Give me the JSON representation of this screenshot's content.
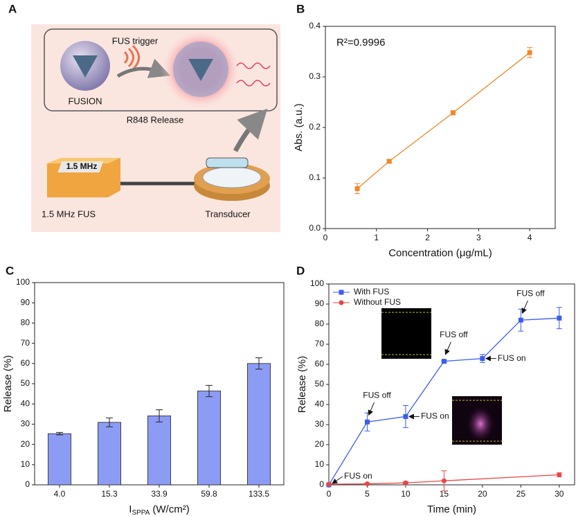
{
  "panel_labels": [
    "A",
    "B",
    "C",
    "D"
  ],
  "diagram": {
    "fus_trigger": "FUS trigger",
    "fusion": "FUSION",
    "release": "R848 Release",
    "device_label": "1.5 MHz",
    "fus": "1.5 MHz FUS",
    "transducer": "Transducer"
  },
  "chart_data": [
    {
      "type": "line",
      "annotation": "R²=0.9996",
      "x_label": "Concentration (μg/mL)",
      "y_label": "Abs. (a.u.)",
      "x": [
        0.625,
        1.25,
        2.5,
        4
      ],
      "series": [
        {
          "color": "#f0872a",
          "marker": "square",
          "values": [
            0.079,
            0.133,
            0.229,
            0.348
          ],
          "errors": [
            0.01,
            0.003,
            0.004,
            0.01
          ]
        }
      ],
      "xlim": [
        0,
        4.5
      ],
      "xticks": [
        0,
        1,
        2,
        3,
        4
      ],
      "ylim": [
        0,
        0.4
      ],
      "yticks": [
        {
          "value": 0,
          "label": "0.0"
        },
        0.1,
        0.2,
        0.3,
        0.4
      ]
    },
    {
      "type": "bar",
      "y_label": "Release (%)",
      "x_label": "I",
      "x_label_sub": "SPPA",
      "x_label_unit": "(W/cm²)",
      "categories": [
        "4.0",
        "15.3",
        "33.9",
        "59.8",
        "133.5"
      ],
      "values": [
        25.3,
        30.9,
        34.1,
        46.4,
        60.0
      ],
      "errors": [
        0.6,
        2.2,
        3.0,
        2.8,
        2.8
      ],
      "color": "#8c9cf5",
      "ylim": [
        0,
        100
      ],
      "yticks": [
        0,
        10,
        20,
        30,
        40,
        50,
        60,
        70,
        80,
        90,
        100
      ]
    },
    {
      "type": "line",
      "x_label": "Time (min)",
      "y_label": "Release (%)",
      "legend": "top-left",
      "series": [
        {
          "name": "With FUS",
          "color": "#3b5cf0",
          "marker": "square",
          "x": [
            0,
            5,
            10,
            15,
            20,
            25,
            30
          ],
          "values": [
            0,
            31.3,
            34.0,
            61.5,
            62.9,
            82.0,
            83.0
          ],
          "errors": [
            0,
            4.5,
            5.5,
            0.5,
            2.0,
            5.5,
            5.3
          ],
          "point_labels": [
            "FUS on",
            "FUS off",
            "FUS on",
            "FUS off",
            "FUS on",
            "FUS off",
            null
          ]
        },
        {
          "name": "Without FUS",
          "color": "#e84545",
          "marker": "circle",
          "x": [
            0,
            5,
            10,
            15,
            30
          ],
          "values": [
            0.3,
            0.5,
            1.0,
            2.0,
            5.0
          ],
          "errors": [
            0.2,
            0.3,
            0.5,
            5.0,
            1.0
          ]
        }
      ],
      "xlim": [
        0,
        32
      ],
      "xticks": [
        0,
        5,
        10,
        15,
        20,
        25,
        30
      ],
      "ylim": [
        0,
        100
      ],
      "yticks": [
        0,
        10,
        20,
        30,
        40,
        50,
        60,
        70,
        80,
        90,
        100
      ]
    }
  ]
}
